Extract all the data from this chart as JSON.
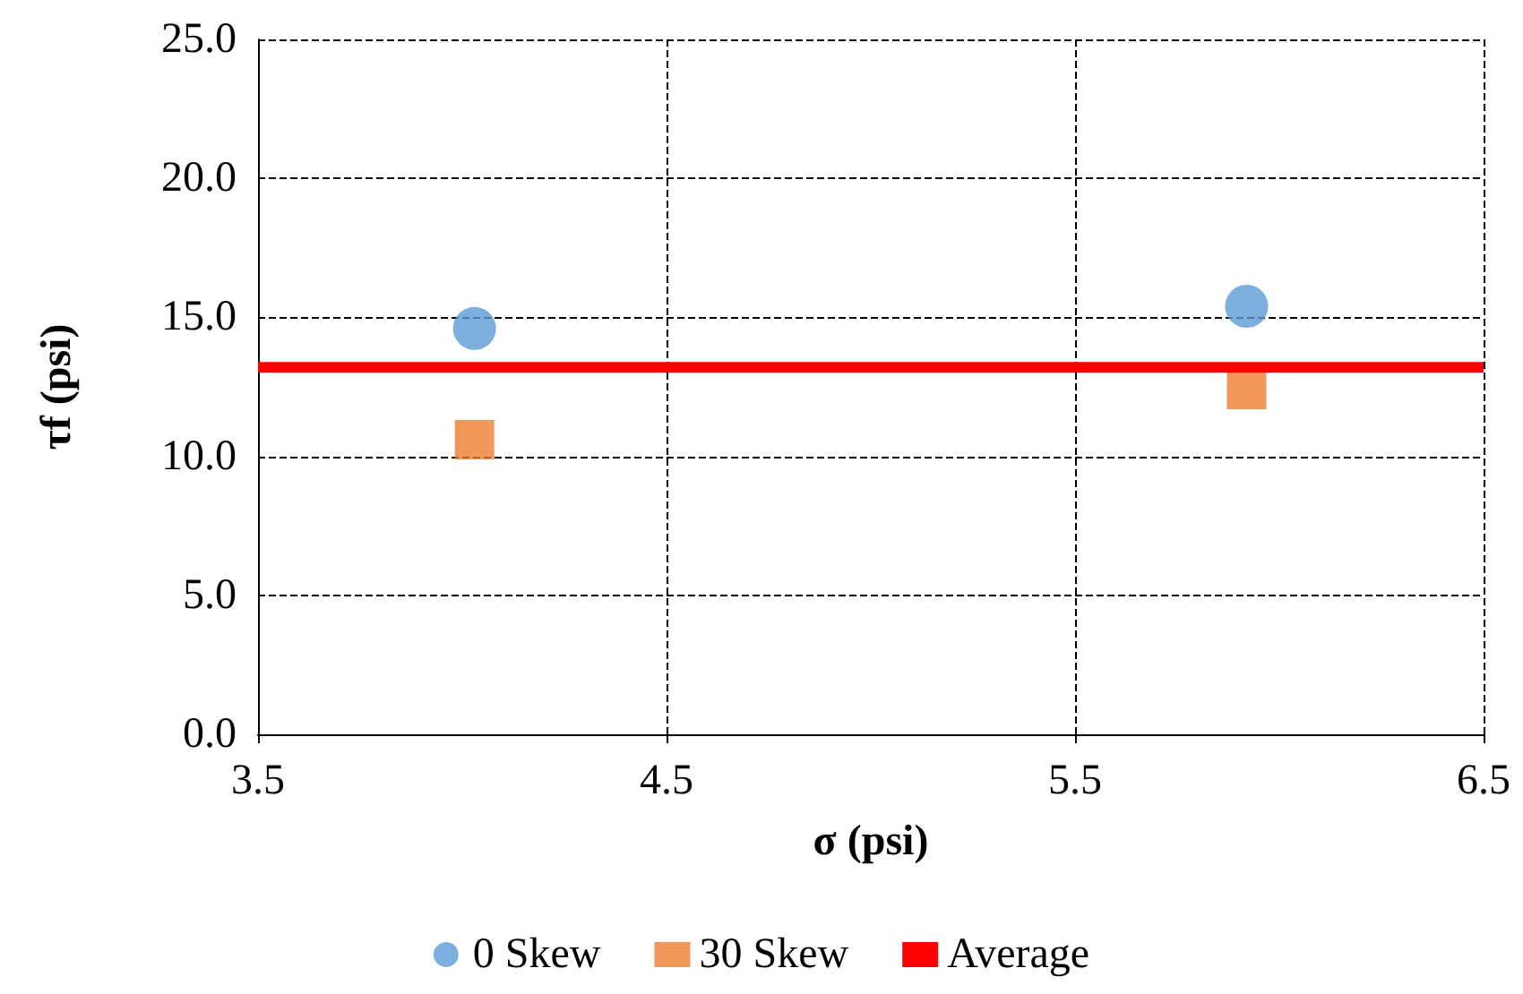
{
  "chart_data": {
    "type": "scatter",
    "xlabel": "σ (psi)",
    "ylabel": "τf (psi)",
    "xlim": [
      3.5,
      6.5
    ],
    "xticks": [
      {
        "value": 3.5,
        "label": "3.5"
      },
      {
        "value": 4.5,
        "label": "4.5"
      },
      {
        "value": 5.5,
        "label": "5.5"
      },
      {
        "value": 6.5,
        "label": "6.5"
      }
    ],
    "ylim": [
      0,
      25
    ],
    "yticks": [
      {
        "value": 0,
        "label": "0.0"
      },
      {
        "value": 5,
        "label": "5.0"
      },
      {
        "value": 10,
        "label": "10.0"
      },
      {
        "value": 15,
        "label": "15.0"
      },
      {
        "value": 20,
        "label": "20.0"
      },
      {
        "value": 25,
        "label": "25.0"
      }
    ],
    "grid": true,
    "legend": "bottom",
    "series": [
      {
        "name": "0 Skew",
        "color": "#5b9bd5",
        "marker": "circle",
        "x": [
          4.03,
          5.92
        ],
        "values": [
          14.6,
          15.4
        ]
      },
      {
        "name": "30 Skew",
        "color": "#ed7d31",
        "marker": "square",
        "x": [
          4.03,
          5.92
        ],
        "values": [
          10.6,
          12.4
        ]
      },
      {
        "name": "Average",
        "type": "line",
        "color": "#ff0000",
        "marker": "none",
        "line_style": "solid",
        "x": [
          3.5,
          6.5
        ],
        "values": [
          13.2,
          13.2
        ]
      }
    ]
  }
}
